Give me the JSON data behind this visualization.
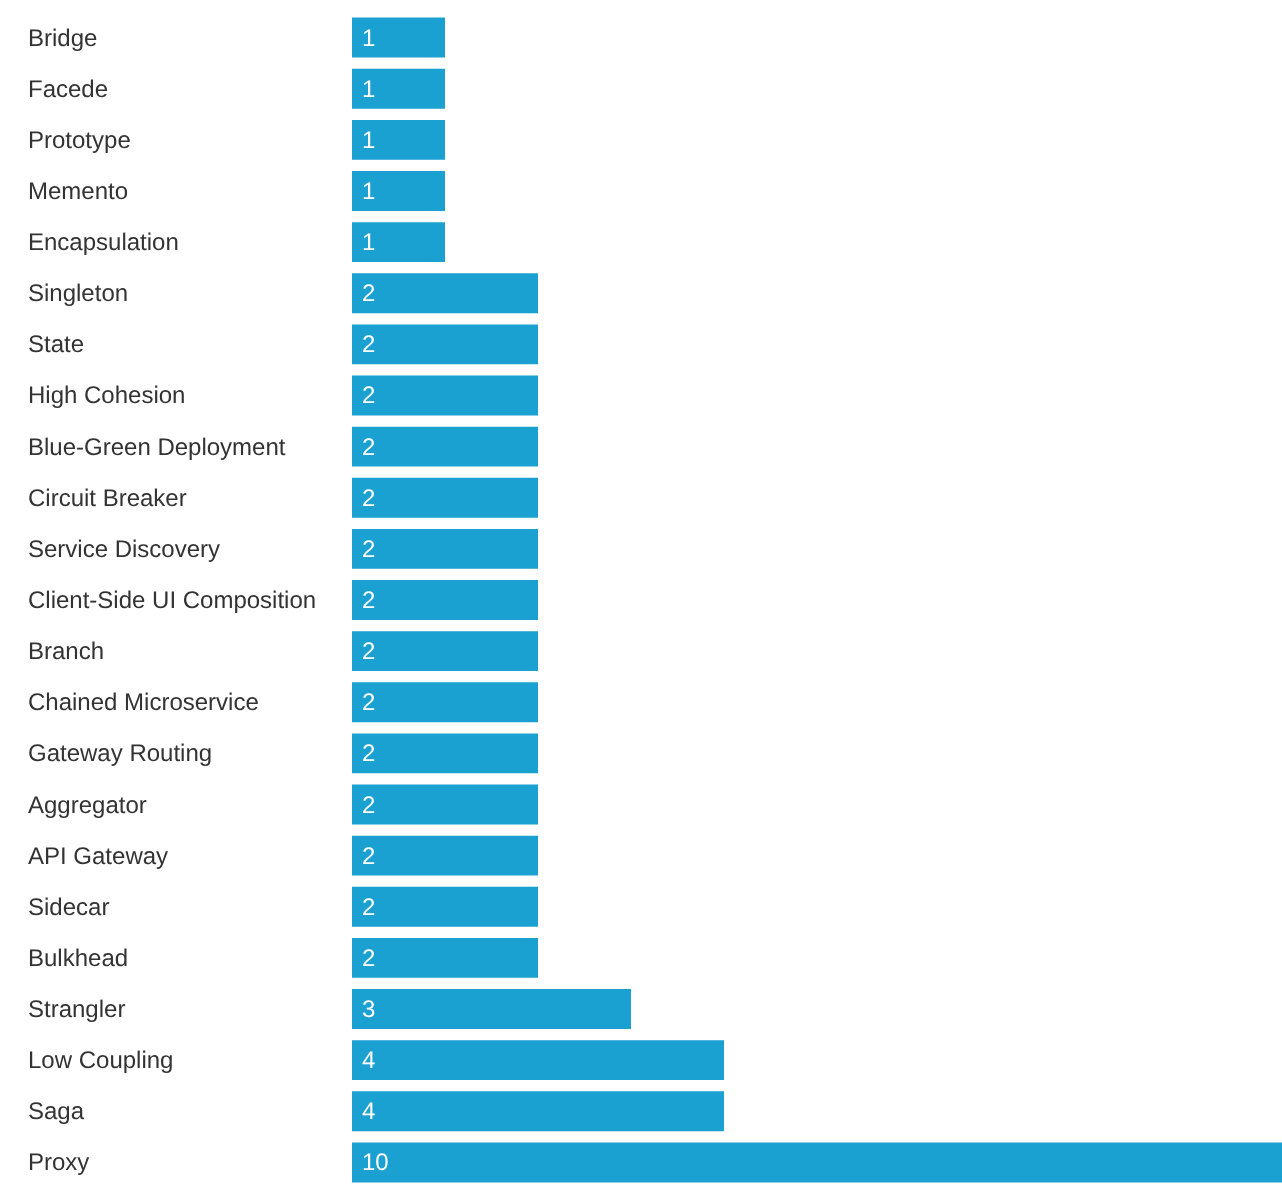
{
  "chart_data": {
    "type": "bar",
    "orientation": "horizontal",
    "categories": [
      "Bridge",
      "Facede",
      "Prototype",
      "Memento",
      "Encapsulation",
      "Singleton",
      "State",
      "High Cohesion",
      "Blue-Green Deployment",
      "Circuit Breaker",
      "Service Discovery",
      "Client-Side UI Composition",
      "Branch",
      "Chained Microservice",
      "Gateway Routing",
      "Aggregator",
      "API Gateway",
      "Sidecar",
      "Bulkhead",
      "Strangler",
      "Low Coupling",
      "Saga",
      "Proxy"
    ],
    "values": [
      1,
      1,
      1,
      1,
      1,
      2,
      2,
      2,
      2,
      2,
      2,
      2,
      2,
      2,
      2,
      2,
      2,
      2,
      2,
      3,
      4,
      4,
      10
    ],
    "color": "#1ba1d1",
    "data_labels": true
  }
}
